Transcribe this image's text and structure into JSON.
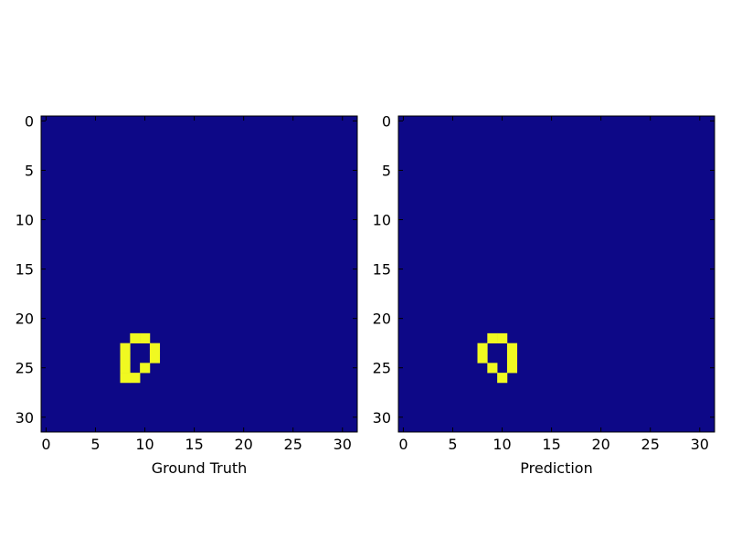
{
  "colors": {
    "background": "#ffffff",
    "empty_cell": "#0d0887",
    "filled_cell": "#f0f921",
    "axis_line": "#000000",
    "text": "#000000"
  },
  "chart_data": [
    {
      "type": "heatmap",
      "title": "",
      "xlabel": "Ground Truth",
      "ylabel": "",
      "grid_size": 32,
      "xlim": [
        -0.5,
        31.5
      ],
      "ylim": [
        31.5,
        -0.5
      ],
      "y_axis_inverted": true,
      "grid": false,
      "x_ticks": [
        0,
        5,
        10,
        15,
        20,
        25,
        30
      ],
      "y_ticks": [
        0,
        5,
        10,
        15,
        20,
        25,
        30
      ],
      "value_range": [
        0,
        1
      ],
      "filled_cells": [
        [
          22,
          9
        ],
        [
          22,
          10
        ],
        [
          23,
          8
        ],
        [
          23,
          11
        ],
        [
          24,
          8
        ],
        [
          24,
          11
        ],
        [
          25,
          8
        ],
        [
          25,
          10
        ],
        [
          26,
          8
        ],
        [
          26,
          9
        ]
      ]
    },
    {
      "type": "heatmap",
      "title": "",
      "xlabel": "Prediction",
      "ylabel": "",
      "grid_size": 32,
      "xlim": [
        -0.5,
        31.5
      ],
      "ylim": [
        31.5,
        -0.5
      ],
      "y_axis_inverted": true,
      "grid": false,
      "x_ticks": [
        0,
        5,
        10,
        15,
        20,
        25,
        30
      ],
      "y_ticks": [
        0,
        5,
        10,
        15,
        20,
        25,
        30
      ],
      "value_range": [
        0,
        1
      ],
      "filled_cells": [
        [
          22,
          9
        ],
        [
          22,
          10
        ],
        [
          23,
          8
        ],
        [
          23,
          11
        ],
        [
          24,
          8
        ],
        [
          24,
          11
        ],
        [
          25,
          9
        ],
        [
          25,
          11
        ],
        [
          26,
          10
        ]
      ]
    }
  ]
}
